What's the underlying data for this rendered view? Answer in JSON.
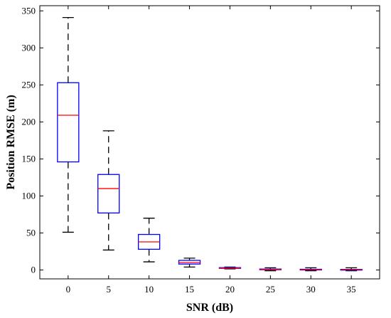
{
  "chart_data": {
    "type": "boxplot",
    "title": "",
    "xlabel": "SNR (dB)",
    "ylabel": "Position RMSE (m)",
    "categories": [
      "0",
      "5",
      "10",
      "15",
      "20",
      "25",
      "30",
      "35"
    ],
    "ylim": [
      -12,
      357
    ],
    "yticks": [
      0,
      50,
      100,
      150,
      200,
      250,
      300,
      350
    ],
    "grid": false,
    "colors": {
      "box": "#0000ff",
      "median": "#ff0000",
      "whisker": "#000000",
      "axis": "#000000"
    },
    "boxes": [
      {
        "category": "0",
        "min": 51,
        "q1": 146,
        "median": 209,
        "q3": 253,
        "max": 341
      },
      {
        "category": "5",
        "min": 27,
        "q1": 77,
        "median": 110,
        "q3": 129,
        "max": 188
      },
      {
        "category": "10",
        "min": 11,
        "q1": 28,
        "median": 38,
        "q3": 48,
        "max": 70
      },
      {
        "category": "15",
        "min": 4,
        "q1": 8,
        "median": 10,
        "q3": 13,
        "max": 16
      },
      {
        "category": "20",
        "min": 1.5,
        "q1": 2.2,
        "median": 2.7,
        "q3": 3.2,
        "max": 4
      },
      {
        "category": "25",
        "min": -1,
        "q1": 0.5,
        "median": 0.9,
        "q3": 1.3,
        "max": 3
      },
      {
        "category": "30",
        "min": -1,
        "q1": 0.4,
        "median": 0.7,
        "q3": 1.0,
        "max": 3
      },
      {
        "category": "35",
        "min": -1,
        "q1": 0.3,
        "median": 0.5,
        "q3": 0.8,
        "max": 3
      }
    ]
  }
}
